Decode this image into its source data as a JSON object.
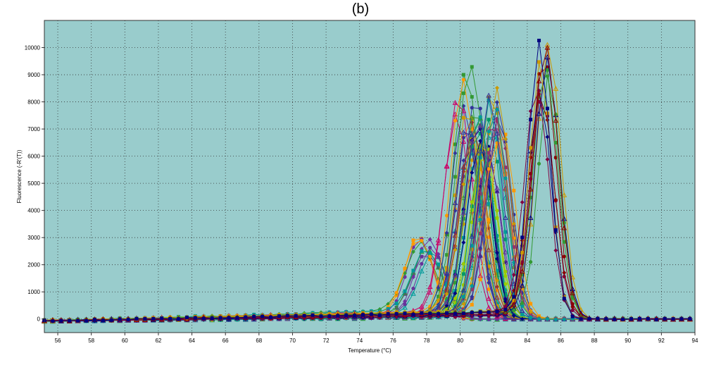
{
  "chart_data": {
    "type": "line",
    "title": "(b)",
    "xlabel": "Temperature (°C)",
    "ylabel": "Fluorescence (-R'(T))",
    "xlim": [
      55.2,
      94
    ],
    "ylim": [
      -500,
      11000
    ],
    "x_ticks": [
      56,
      58,
      60,
      62,
      64,
      66,
      68,
      70,
      72,
      74,
      76,
      78,
      80,
      82,
      84,
      86,
      88,
      90,
      92,
      94
    ],
    "y_ticks": [
      0,
      1000,
      2000,
      3000,
      4000,
      5000,
      6000,
      7000,
      8000,
      9000,
      10000
    ],
    "grid": true,
    "background": "#99cccc",
    "curve_groups": [
      {
        "name": "",
        "peak_x": 78.0,
        "peak_y": 3000,
        "width": 0.85,
        "count": 10,
        "color_cycle": [
          "#ff9900",
          "#7030a0",
          "#339933",
          "#009999",
          "#663399"
        ]
      },
      {
        "name": "",
        "peak_x": 80.2,
        "peak_y": 9100,
        "width": 0.8,
        "count": 8,
        "color_cycle": [
          "#ff9900",
          "#333399",
          "#cc0066",
          "#339933"
        ]
      },
      {
        "name": "",
        "peak_x": 80.8,
        "peak_y": 7800,
        "width": 0.75,
        "count": 14,
        "color_cycle": [
          "#339933",
          "#009999",
          "#cc9900",
          "#333399",
          "#993333"
        ]
      },
      {
        "name": "",
        "peak_x": 81.3,
        "peak_y": 7200,
        "width": 0.75,
        "count": 12,
        "color_cycle": [
          "#663399",
          "#009966",
          "#99cc00",
          "#000080"
        ]
      },
      {
        "name": "",
        "peak_x": 82.2,
        "peak_y": 8200,
        "width": 0.75,
        "count": 14,
        "color_cycle": [
          "#cc9900",
          "#333399",
          "#993366",
          "#009999",
          "#ff9900"
        ]
      },
      {
        "name": "",
        "peak_x": 84.9,
        "peak_y": 9900,
        "width": 0.7,
        "count": 12,
        "color_cycle": [
          "#8b0000",
          "#000080",
          "#cc9900",
          "#339933",
          "#800040"
        ]
      }
    ]
  }
}
